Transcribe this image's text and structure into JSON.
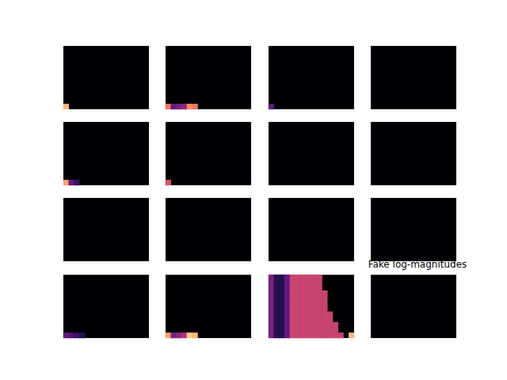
{
  "chart_data": [
    {
      "type": "heatmap",
      "shape": [
        12,
        16
      ],
      "color_range": [
        0,
        1
      ],
      "tick_labels": false,
      "cells": [
        [
          0,
          11,
          0.85
        ]
      ]
    },
    {
      "type": "heatmap",
      "shape": [
        12,
        16
      ],
      "color_range": [
        0,
        1
      ],
      "tick_labels": false,
      "cells": [
        [
          0,
          11,
          0.7
        ],
        [
          1,
          11,
          0.3
        ],
        [
          2,
          11,
          0.35
        ],
        [
          3,
          11,
          0.4
        ],
        [
          4,
          11,
          0.75
        ],
        [
          5,
          11,
          0.7
        ]
      ]
    },
    {
      "type": "heatmap",
      "shape": [
        12,
        16
      ],
      "color_range": [
        0,
        1
      ],
      "tick_labels": false,
      "cells": [
        [
          0,
          11,
          0.3
        ]
      ]
    },
    {
      "type": "heatmap",
      "shape": [
        12,
        16
      ],
      "color_range": [
        0,
        1
      ],
      "tick_labels": false,
      "cells": []
    },
    {
      "type": "heatmap",
      "shape": [
        12,
        16
      ],
      "color_range": [
        0,
        1
      ],
      "tick_labels": false,
      "cells": [
        [
          0,
          11,
          0.8
        ],
        [
          1,
          11,
          0.3
        ],
        [
          2,
          11,
          0.2
        ]
      ]
    },
    {
      "type": "heatmap",
      "shape": [
        12,
        16
      ],
      "color_range": [
        0,
        1
      ],
      "tick_labels": false,
      "cells": [
        [
          0,
          11,
          0.6
        ]
      ]
    },
    {
      "type": "heatmap",
      "shape": [
        12,
        16
      ],
      "color_range": [
        0,
        1
      ],
      "tick_labels": false,
      "cells": []
    },
    {
      "type": "heatmap",
      "shape": [
        12,
        16
      ],
      "color_range": [
        0,
        1
      ],
      "tick_labels": false,
      "cells": []
    },
    {
      "type": "heatmap",
      "shape": [
        12,
        16
      ],
      "color_range": [
        0,
        1
      ],
      "tick_labels": false,
      "cells": []
    },
    {
      "type": "heatmap",
      "shape": [
        12,
        16
      ],
      "color_range": [
        0,
        1
      ],
      "tick_labels": false,
      "cells": []
    },
    {
      "type": "heatmap",
      "shape": [
        12,
        16
      ],
      "color_range": [
        0,
        1
      ],
      "tick_labels": false,
      "cells": []
    },
    {
      "type": "heatmap",
      "shape": [
        12,
        16
      ],
      "color_range": [
        0,
        1
      ],
      "tick_labels": false,
      "cells": []
    },
    {
      "type": "heatmap",
      "shape": [
        12,
        16
      ],
      "color_range": [
        0,
        1
      ],
      "tick_labels": false,
      "cells": [
        [
          0,
          11,
          0.3
        ],
        [
          1,
          11,
          0.25
        ],
        [
          2,
          11,
          0.2
        ],
        [
          3,
          11,
          0.15
        ]
      ]
    },
    {
      "type": "heatmap",
      "shape": [
        12,
        16
      ],
      "color_range": [
        0,
        1
      ],
      "tick_labels": false,
      "cells": [
        [
          0,
          11,
          0.8
        ],
        [
          1,
          11,
          0.35
        ],
        [
          2,
          11,
          0.4
        ],
        [
          3,
          11,
          0.5
        ],
        [
          4,
          11,
          0.9
        ],
        [
          5,
          11,
          0.85
        ]
      ]
    },
    {
      "type": "heatmap",
      "shape": [
        12,
        16
      ],
      "color_range": [
        0,
        1
      ],
      "tick_labels": false,
      "cells": [
        [
          0,
          0,
          0.35
        ],
        [
          0,
          1,
          0.35
        ],
        [
          0,
          2,
          0.35
        ],
        [
          0,
          3,
          0.35
        ],
        [
          0,
          4,
          0.35
        ],
        [
          0,
          5,
          0.35
        ],
        [
          0,
          6,
          0.35
        ],
        [
          0,
          7,
          0.35
        ],
        [
          0,
          8,
          0.35
        ],
        [
          0,
          9,
          0.35
        ],
        [
          0,
          10,
          0.35
        ],
        [
          0,
          11,
          0.35
        ],
        [
          1,
          0,
          0.15
        ],
        [
          1,
          1,
          0.15
        ],
        [
          1,
          2,
          0.15
        ],
        [
          1,
          3,
          0.15
        ],
        [
          1,
          4,
          0.15
        ],
        [
          1,
          5,
          0.15
        ],
        [
          1,
          6,
          0.15
        ],
        [
          1,
          7,
          0.15
        ],
        [
          1,
          8,
          0.15
        ],
        [
          1,
          9,
          0.15
        ],
        [
          1,
          10,
          0.15
        ],
        [
          1,
          11,
          0.15
        ],
        [
          2,
          0,
          0.15
        ],
        [
          2,
          1,
          0.15
        ],
        [
          2,
          2,
          0.15
        ],
        [
          2,
          3,
          0.15
        ],
        [
          2,
          4,
          0.15
        ],
        [
          2,
          5,
          0.15
        ],
        [
          2,
          6,
          0.15
        ],
        [
          2,
          7,
          0.15
        ],
        [
          2,
          8,
          0.15
        ],
        [
          2,
          9,
          0.15
        ],
        [
          2,
          10,
          0.15
        ],
        [
          2,
          11,
          0.15
        ],
        [
          3,
          0,
          0.3
        ],
        [
          3,
          1,
          0.3
        ],
        [
          3,
          2,
          0.3
        ],
        [
          3,
          3,
          0.3
        ],
        [
          3,
          4,
          0.3
        ],
        [
          3,
          5,
          0.3
        ],
        [
          3,
          6,
          0.3
        ],
        [
          3,
          7,
          0.3
        ],
        [
          3,
          8,
          0.3
        ],
        [
          3,
          9,
          0.3
        ],
        [
          3,
          10,
          0.3
        ],
        [
          3,
          11,
          0.3
        ],
        [
          4,
          0,
          0.55
        ],
        [
          5,
          0,
          0.55
        ],
        [
          6,
          0,
          0.55
        ],
        [
          7,
          0,
          0.55
        ],
        [
          8,
          0,
          0.55
        ],
        [
          9,
          0,
          0.55
        ],
        [
          4,
          1,
          0.55
        ],
        [
          5,
          1,
          0.55
        ],
        [
          6,
          1,
          0.55
        ],
        [
          7,
          1,
          0.55
        ],
        [
          8,
          1,
          0.55
        ],
        [
          9,
          1,
          0.55
        ],
        [
          4,
          2,
          0.55
        ],
        [
          5,
          2,
          0.55
        ],
        [
          6,
          2,
          0.55
        ],
        [
          7,
          2,
          0.55
        ],
        [
          8,
          2,
          0.55
        ],
        [
          9,
          2,
          0.55
        ],
        [
          4,
          3,
          0.55
        ],
        [
          5,
          3,
          0.55
        ],
        [
          6,
          3,
          0.55
        ],
        [
          7,
          3,
          0.55
        ],
        [
          8,
          3,
          0.55
        ],
        [
          9,
          3,
          0.55
        ],
        [
          10,
          3,
          0.55
        ],
        [
          4,
          4,
          0.55
        ],
        [
          5,
          4,
          0.55
        ],
        [
          6,
          4,
          0.55
        ],
        [
          7,
          4,
          0.55
        ],
        [
          8,
          4,
          0.55
        ],
        [
          9,
          4,
          0.55
        ],
        [
          10,
          4,
          0.55
        ],
        [
          4,
          5,
          0.55
        ],
        [
          5,
          5,
          0.55
        ],
        [
          6,
          5,
          0.55
        ],
        [
          7,
          5,
          0.55
        ],
        [
          8,
          5,
          0.55
        ],
        [
          9,
          5,
          0.55
        ],
        [
          10,
          5,
          0.55
        ],
        [
          4,
          6,
          0.55
        ],
        [
          5,
          6,
          0.55
        ],
        [
          6,
          6,
          0.55
        ],
        [
          7,
          6,
          0.55
        ],
        [
          8,
          6,
          0.55
        ],
        [
          9,
          6,
          0.55
        ],
        [
          10,
          6,
          0.55
        ],
        [
          4,
          7,
          0.55
        ],
        [
          5,
          7,
          0.55
        ],
        [
          6,
          7,
          0.55
        ],
        [
          7,
          7,
          0.55
        ],
        [
          8,
          7,
          0.55
        ],
        [
          9,
          7,
          0.55
        ],
        [
          10,
          7,
          0.55
        ],
        [
          11,
          7,
          0.55
        ],
        [
          4,
          8,
          0.55
        ],
        [
          5,
          8,
          0.55
        ],
        [
          6,
          8,
          0.55
        ],
        [
          7,
          8,
          0.55
        ],
        [
          8,
          8,
          0.55
        ],
        [
          9,
          8,
          0.55
        ],
        [
          10,
          8,
          0.55
        ],
        [
          11,
          8,
          0.55
        ],
        [
          4,
          9,
          0.55
        ],
        [
          5,
          9,
          0.55
        ],
        [
          6,
          9,
          0.55
        ],
        [
          7,
          9,
          0.55
        ],
        [
          8,
          9,
          0.55
        ],
        [
          9,
          9,
          0.55
        ],
        [
          10,
          9,
          0.55
        ],
        [
          11,
          9,
          0.55
        ],
        [
          12,
          9,
          0.55
        ],
        [
          4,
          10,
          0.55
        ],
        [
          5,
          10,
          0.55
        ],
        [
          6,
          10,
          0.55
        ],
        [
          7,
          10,
          0.55
        ],
        [
          8,
          10,
          0.55
        ],
        [
          9,
          10,
          0.55
        ],
        [
          10,
          10,
          0.55
        ],
        [
          11,
          10,
          0.55
        ],
        [
          12,
          10,
          0.55
        ],
        [
          4,
          11,
          0.55
        ],
        [
          5,
          11,
          0.55
        ],
        [
          6,
          11,
          0.55
        ],
        [
          7,
          11,
          0.55
        ],
        [
          8,
          11,
          0.55
        ],
        [
          9,
          11,
          0.55
        ],
        [
          10,
          11,
          0.55
        ],
        [
          11,
          11,
          0.55
        ],
        [
          12,
          11,
          0.55
        ],
        [
          13,
          11,
          0.55
        ],
        [
          15,
          11,
          0.85
        ]
      ]
    },
    {
      "type": "heatmap",
      "title": "Fake log-magnitudes",
      "shape": [
        12,
        16
      ],
      "color_range": [
        0,
        1
      ],
      "tick_labels": false,
      "cells": []
    }
  ]
}
